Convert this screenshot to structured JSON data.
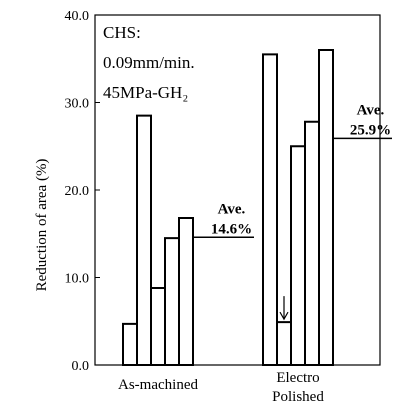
{
  "chart_data": {
    "type": "bar",
    "ylabel": "Reduction of area (%)",
    "ylim": [
      0,
      40
    ],
    "yticks": [
      "0.0",
      "10.0",
      "20.0",
      "30.0",
      "40.0"
    ],
    "grid": false,
    "annotation_lines": [
      "CHS:",
      "0.09mm/min.",
      "45MPa-GH₂"
    ],
    "groups": [
      {
        "category_lines": [
          "As-machined"
        ],
        "values": [
          4.7,
          28.5,
          8.8,
          14.5,
          16.8
        ],
        "average_label_lines": [
          "Ave.",
          "14.6%"
        ],
        "average": 14.6
      },
      {
        "category_lines": [
          "Electro",
          "Polished"
        ],
        "values": [
          35.5,
          4.9,
          25.0,
          27.8,
          36.0
        ],
        "average_label_lines": [
          "Ave.",
          "25.9%"
        ],
        "average": 25.9
      }
    ],
    "marked_bar": {
      "group": 1,
      "index": 1,
      "marker": "arrow-down"
    }
  }
}
